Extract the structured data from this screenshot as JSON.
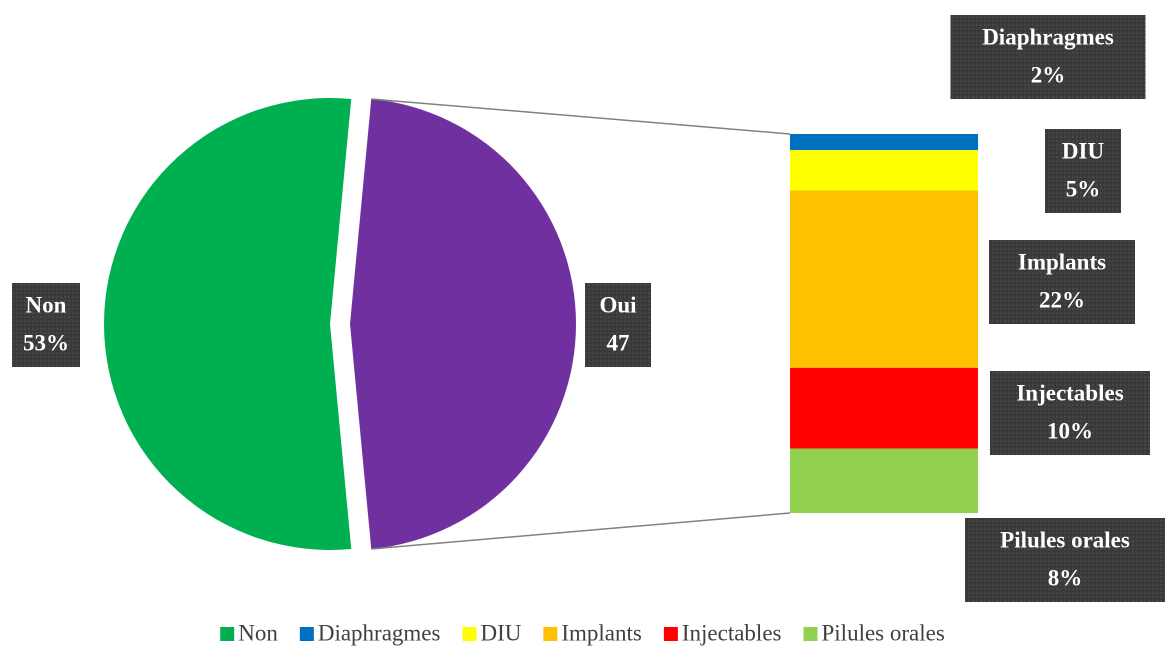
{
  "chart_data": {
    "type": "pie-of-bar",
    "categories": [
      "Non",
      "Oui"
    ],
    "values": [
      53,
      47
    ],
    "value_labels": [
      "53%",
      "47"
    ],
    "colors": [
      "#00b050",
      "#7030a0"
    ],
    "breakdown": {
      "categories": [
        "Diaphragmes",
        "DIU",
        "Implants",
        "Injectables",
        "Pilules orales"
      ],
      "values": [
        2,
        5,
        22,
        10,
        8
      ],
      "value_labels": [
        "2%",
        "5%",
        "22%",
        "10%",
        "8%"
      ],
      "colors": [
        "#0070c0",
        "#ffff00",
        "#ffc000",
        "#ff0000",
        "#92d050"
      ]
    },
    "legend": "bottom"
  }
}
